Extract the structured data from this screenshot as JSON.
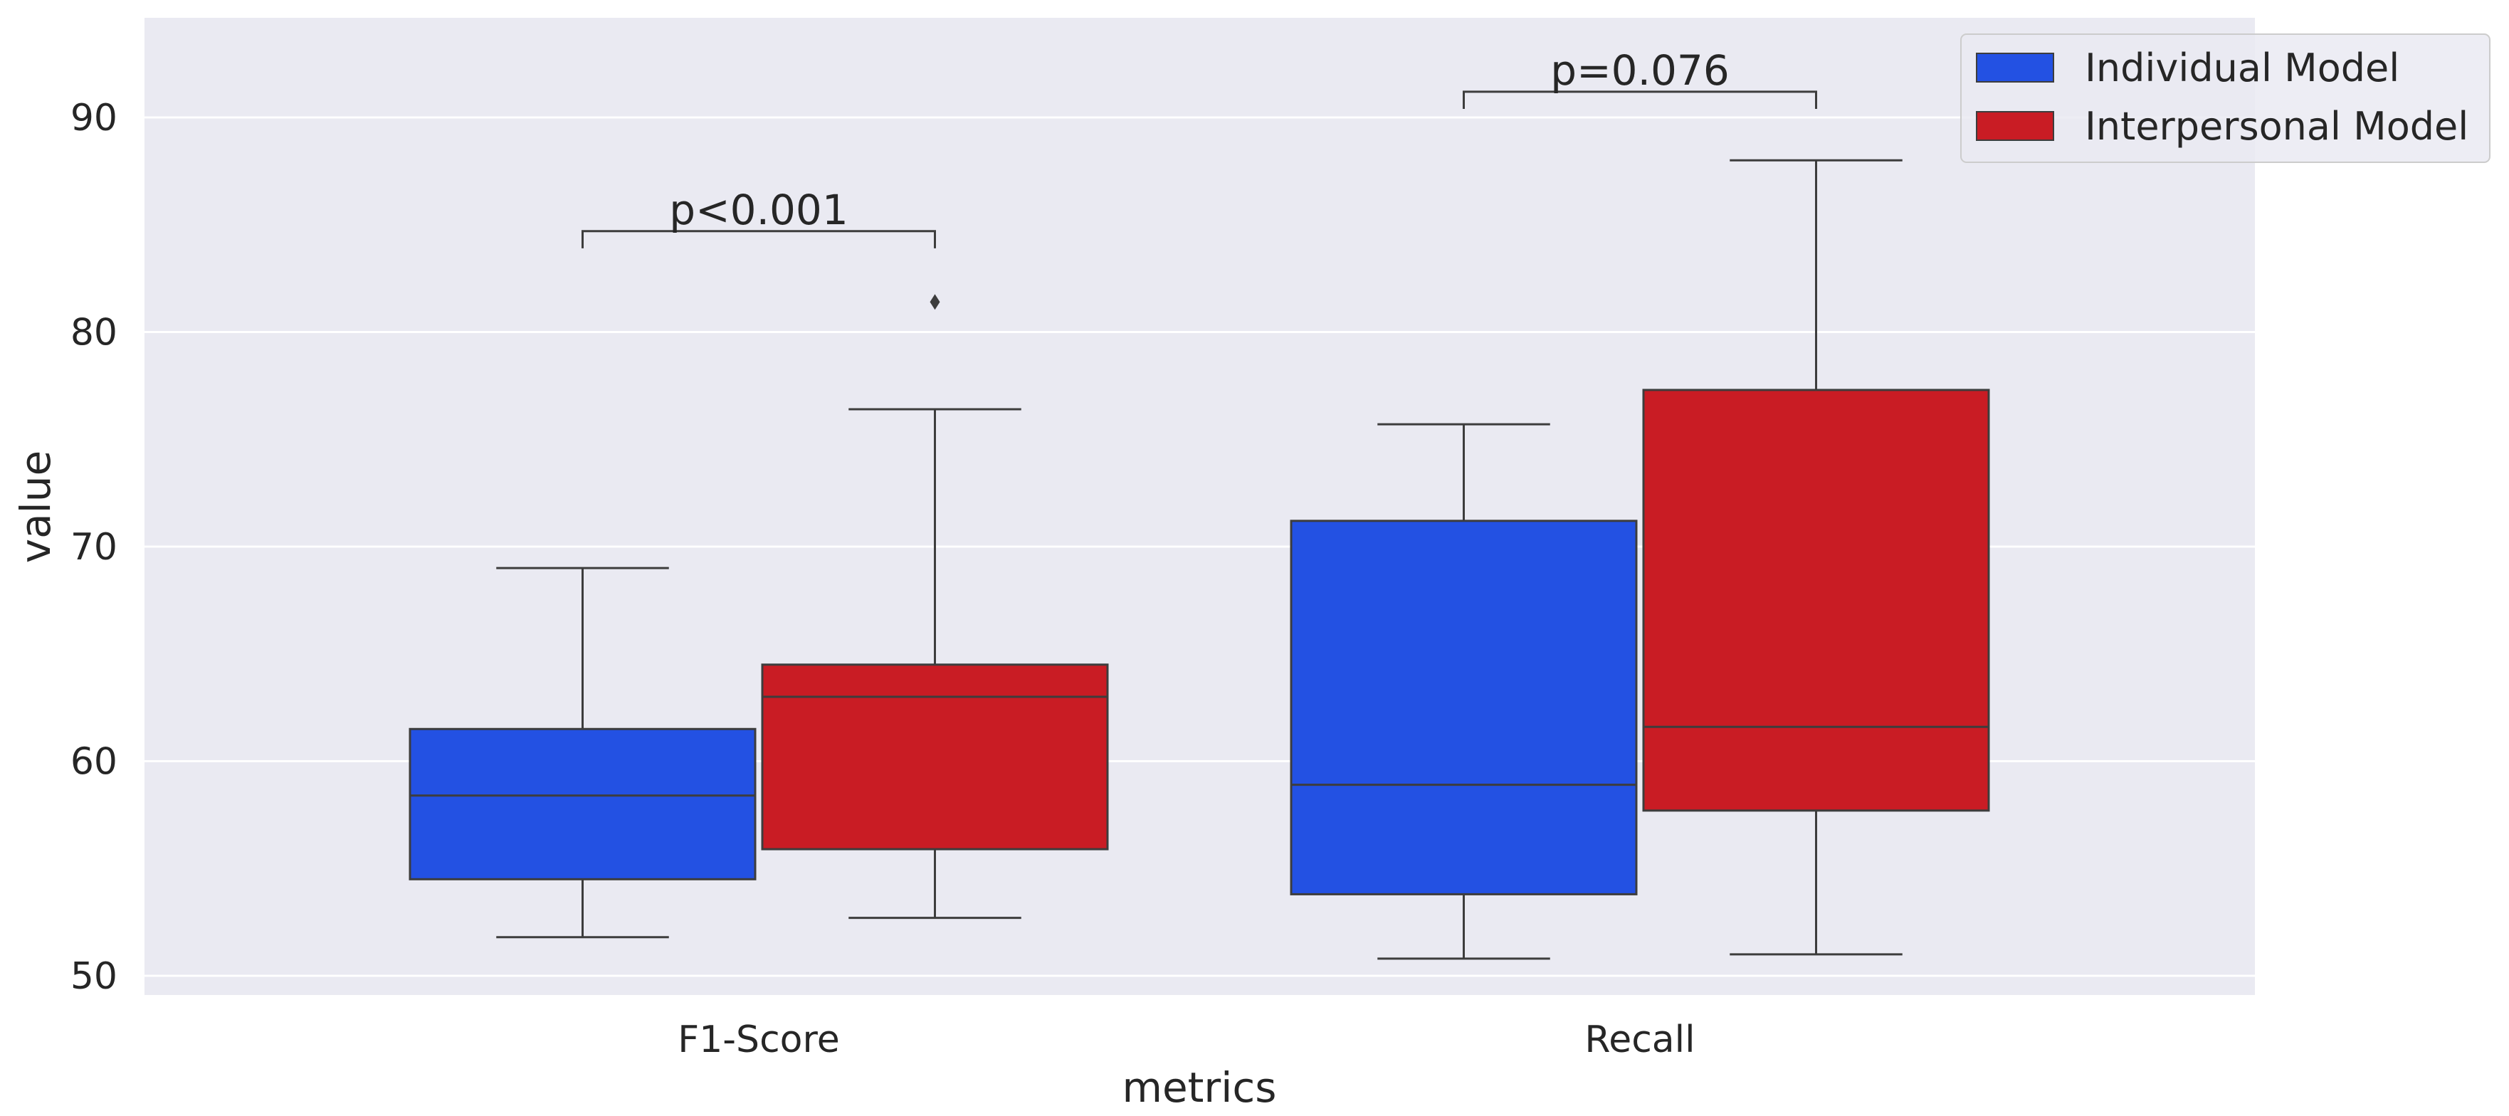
{
  "chart_data": {
    "type": "box",
    "title": "",
    "xlabel": "metrics",
    "ylabel": "value",
    "ylim": [
      49,
      94.5
    ],
    "yticks": [
      50,
      60,
      70,
      80,
      90
    ],
    "categories": [
      "F1-Score",
      "Recall"
    ],
    "grid": true,
    "legend_position": "top-right",
    "series": [
      {
        "name": "Individual Model",
        "color": "#2351e3",
        "boxes": [
          {
            "whisker_low": 51.8,
            "q1": 54.5,
            "median": 58.4,
            "q3": 61.5,
            "whisker_high": 69.0,
            "outliers": []
          },
          {
            "whisker_low": 50.8,
            "q1": 53.8,
            "median": 58.9,
            "q3": 71.2,
            "whisker_high": 75.7,
            "outliers": []
          }
        ]
      },
      {
        "name": "Interpersonal Model",
        "color": "#c91c24",
        "boxes": [
          {
            "whisker_low": 52.7,
            "q1": 55.9,
            "median": 63.0,
            "q3": 64.5,
            "whisker_high": 76.4,
            "outliers": [
              81.4
            ]
          },
          {
            "whisker_low": 51.0,
            "q1": 57.7,
            "median": 61.6,
            "q3": 77.3,
            "whisker_high": 88.0,
            "outliers": []
          }
        ]
      }
    ],
    "annotations": [
      {
        "category": "F1-Score",
        "text": "p<0.001",
        "y": 84.7,
        "drop": 0.8
      },
      {
        "category": "Recall",
        "text": "p=0.076",
        "y": 91.2,
        "drop": 0.8
      }
    ]
  }
}
